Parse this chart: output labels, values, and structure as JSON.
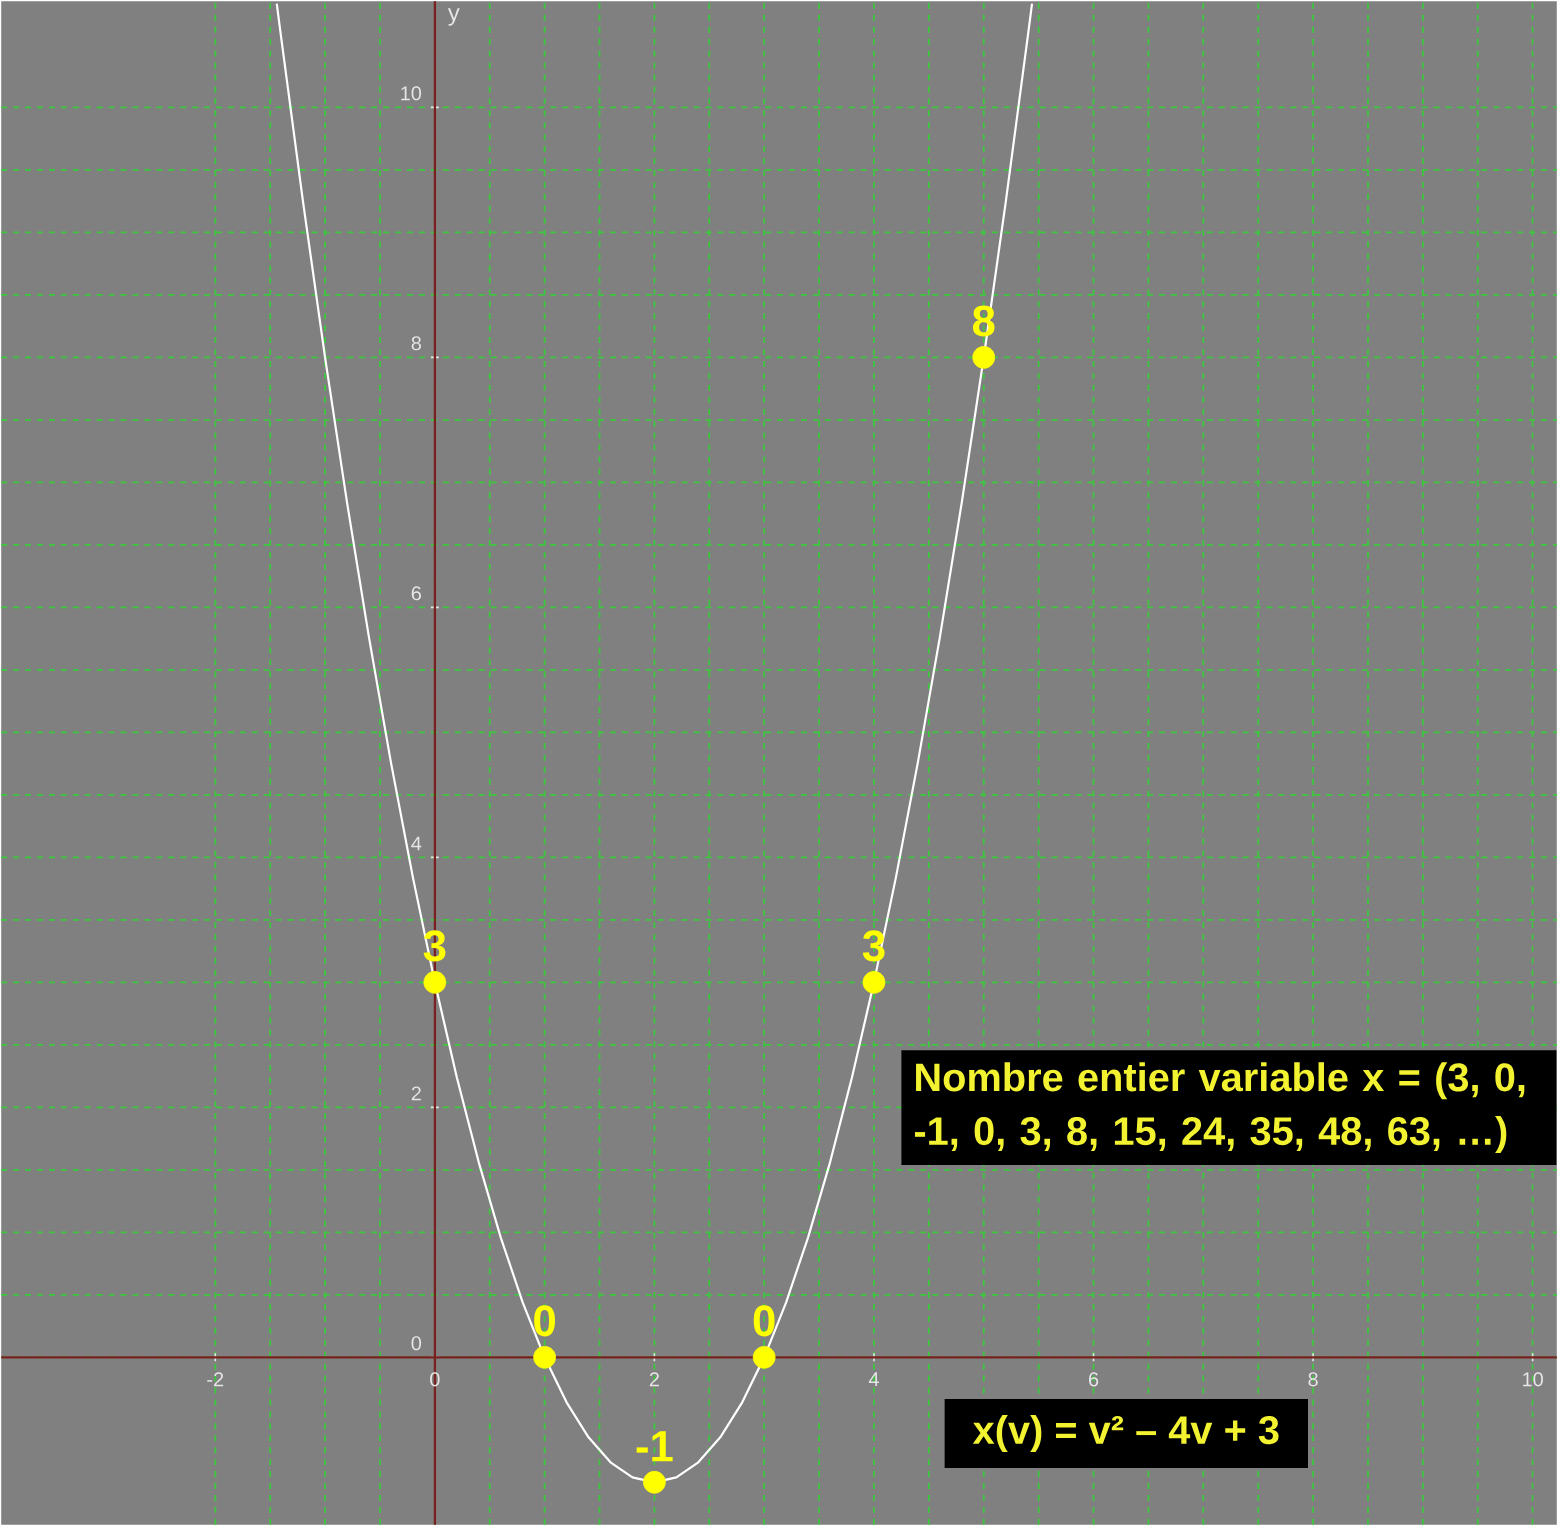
{
  "chart_data": {
    "type": "line",
    "ylabel": "y",
    "xlim": [
      -3.95,
      10.22
    ],
    "ylim": [
      -1.34,
      10.85
    ],
    "xticks": [
      -2,
      0,
      2,
      4,
      6,
      8,
      10
    ],
    "yticks": [
      0,
      2,
      4,
      6,
      8,
      10
    ],
    "grid": true,
    "series": [
      {
        "color": "#ffffff",
        "line_style": "solid",
        "x": [
          -1.44,
          -1.4,
          -1.2,
          -1.0,
          -0.8,
          -0.6,
          -0.4,
          -0.2,
          0,
          0.2,
          0.4,
          0.6,
          0.8,
          1.0,
          1.2,
          1.4,
          1.6,
          1.8,
          2.0,
          2.2,
          2.4,
          2.6,
          2.8,
          3.0,
          3.2,
          3.4,
          3.6,
          3.8,
          4.0,
          4.2,
          4.4,
          4.6,
          4.8,
          5.0,
          5.2,
          5.4,
          5.44
        ],
        "values": [
          10.83,
          10.56,
          9.24,
          8,
          6.84,
          5.76,
          4.76,
          3.84,
          3,
          2.24,
          1.56,
          0.96,
          0.44,
          0,
          -0.36,
          -0.64,
          -0.84,
          -0.96,
          -1,
          -0.96,
          -0.84,
          -0.64,
          -0.36,
          0,
          0.44,
          0.96,
          1.56,
          2.24,
          3,
          3.84,
          4.76,
          5.76,
          6.84,
          8,
          9.24,
          10.56,
          10.83
        ]
      },
      {
        "type": "scatter",
        "color": "#ffff00",
        "marker": "circle",
        "data_labels": true,
        "x": [
          0,
          1,
          2,
          3,
          4,
          5
        ],
        "values": [
          3,
          0,
          -1,
          0,
          3,
          8
        ]
      }
    ],
    "annotations": [
      "Nombre entier variable x = (3, 0, -1, 0, 3, 8, 15, 24, 35, 48, 63, …)",
      "x(v) = v² – 4v + 3"
    ]
  }
}
